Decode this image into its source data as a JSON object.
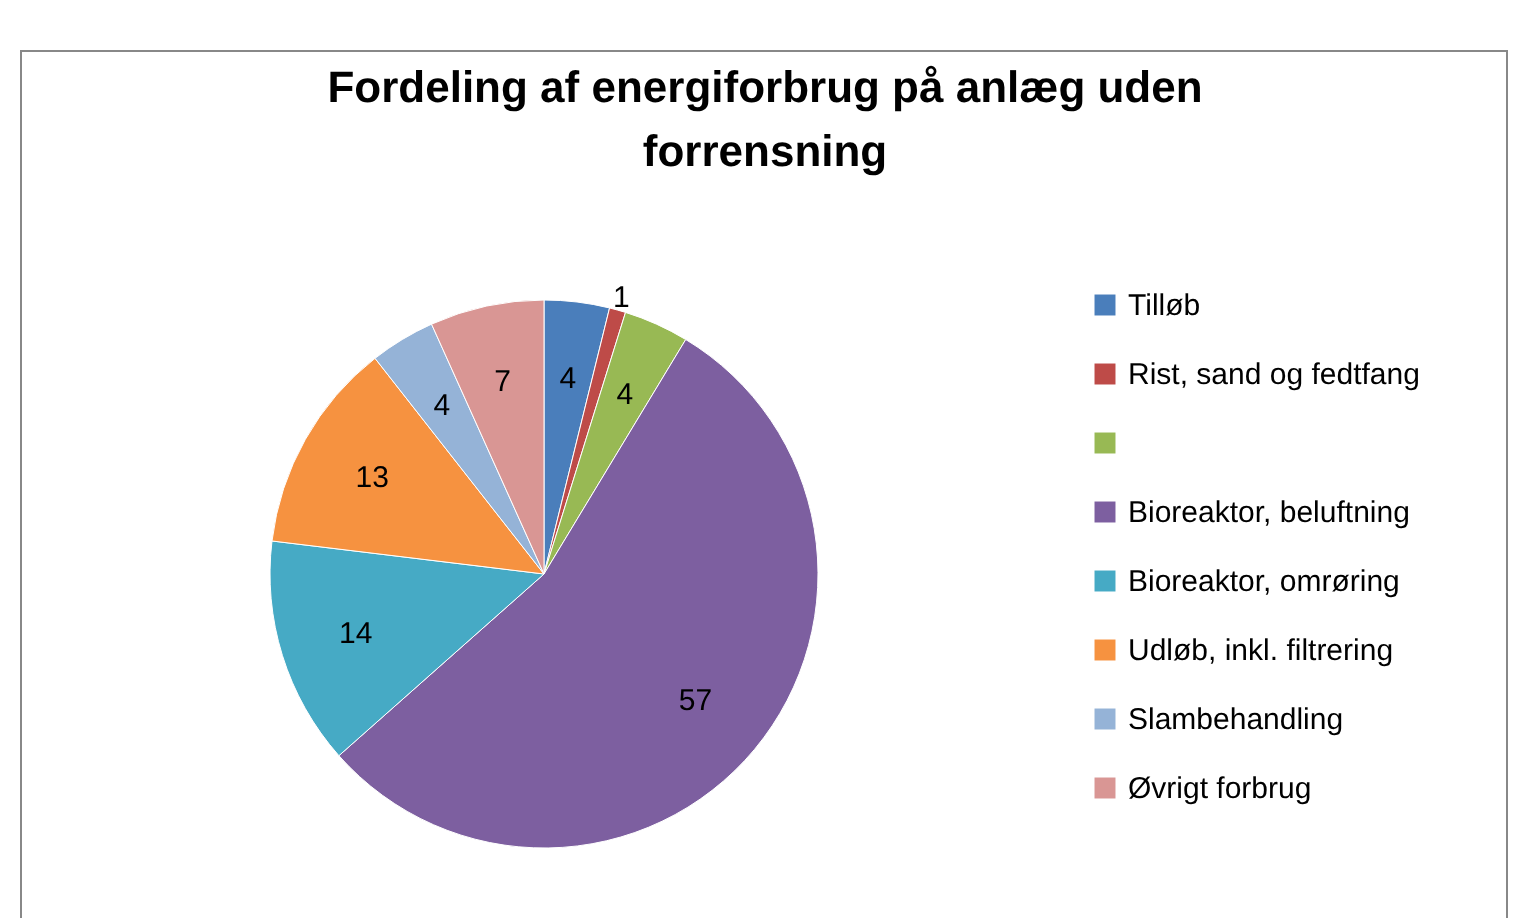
{
  "chart_data": {
    "type": "pie",
    "title": "Fordeling af energiforbrug på anlæg uden forrensning",
    "categories": [
      "Tilløb",
      "Rist, sand og fedtfang",
      null,
      "Bioreaktor, beluftning",
      "Bioreaktor, omrøring",
      "Udløb, inkl. filtrering",
      "Slambehandling",
      "Øvrigt forbrug"
    ],
    "values": [
      4,
      1,
      4,
      57,
      14,
      13,
      4,
      7
    ],
    "colors": [
      "#4a7ebb",
      "#be4b48",
      "#98b954",
      "#7d5fa0",
      "#46aac5",
      "#f69240",
      "#95b3d7",
      "#d99694"
    ],
    "data_labels": true,
    "legend": "right"
  }
}
